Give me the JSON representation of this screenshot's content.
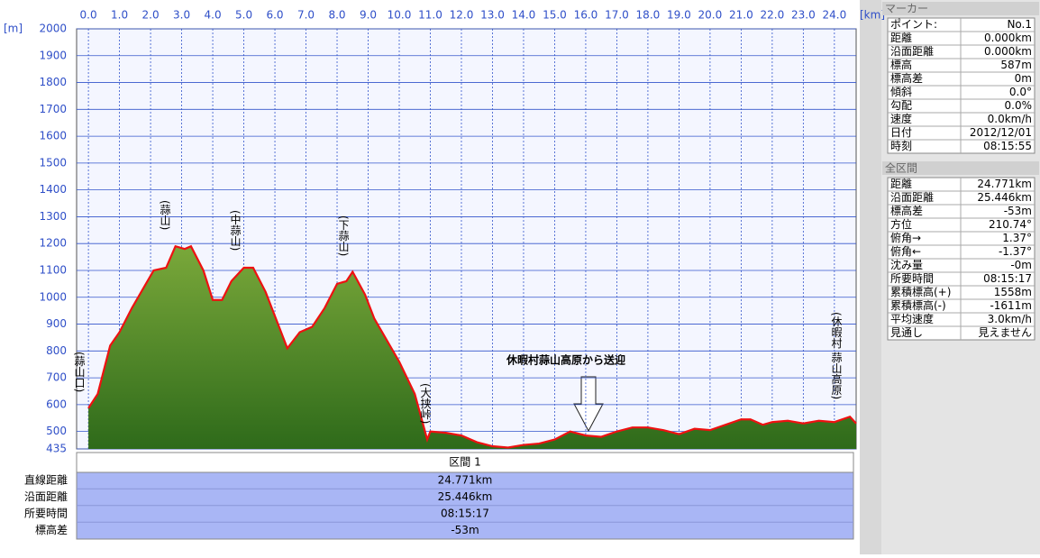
{
  "chart_data": {
    "type": "area",
    "ylabel": "[m]",
    "xlabel": "[km]",
    "xlim": [
      -0.38,
      24.7
    ],
    "ylim": [
      435,
      2000
    ],
    "xticks": [
      {
        "value": 0,
        "label": "0.0"
      },
      {
        "value": 1,
        "label": "1.0"
      },
      {
        "value": 2,
        "label": "2.0"
      },
      {
        "value": 3,
        "label": "3.0"
      },
      {
        "value": 4,
        "label": "4.0"
      },
      {
        "value": 5,
        "label": "5.0"
      },
      {
        "value": 6,
        "label": "6.0"
      },
      {
        "value": 7,
        "label": "7.0"
      },
      {
        "value": 8,
        "label": "8.0"
      },
      {
        "value": 9,
        "label": "9.0"
      },
      {
        "value": 10,
        "label": "10.0"
      },
      {
        "value": 11,
        "label": "11.0"
      },
      {
        "value": 12,
        "label": "12.0"
      },
      {
        "value": 13,
        "label": "13.0"
      },
      {
        "value": 14,
        "label": "14.0"
      },
      {
        "value": 15,
        "label": "15.0"
      },
      {
        "value": 16,
        "label": "16.0"
      },
      {
        "value": 17,
        "label": "17.0"
      },
      {
        "value": 18,
        "label": "18.0"
      },
      {
        "value": 19,
        "label": "19.0"
      },
      {
        "value": 20,
        "label": "20.0"
      },
      {
        "value": 21,
        "label": "21.0"
      },
      {
        "value": 22,
        "label": "22.0"
      },
      {
        "value": 23,
        "label": "23.0"
      },
      {
        "value": 24,
        "label": "24.0"
      }
    ],
    "yticks": [
      435,
      500,
      600,
      700,
      800,
      900,
      1000,
      1100,
      1200,
      1300,
      1400,
      1500,
      1600,
      1700,
      1800,
      1900,
      2000
    ],
    "grid": true,
    "line_color": "#ee1111",
    "fill_color": "#5a8a2a",
    "x": [
      0,
      0.3,
      0.7,
      1.0,
      1.4,
      1.8,
      2.1,
      2.5,
      2.8,
      3.1,
      3.3,
      3.7,
      4.0,
      4.3,
      4.6,
      5.0,
      5.3,
      5.7,
      6.1,
      6.4,
      6.8,
      7.2,
      7.6,
      8.0,
      8.3,
      8.5,
      8.9,
      9.2,
      9.5,
      10.0,
      10.5,
      10.9,
      11.0,
      11.5,
      12.0,
      12.5,
      13.0,
      13.5,
      14.0,
      14.5,
      15.0,
      15.5,
      16.0,
      16.5,
      17.0,
      17.5,
      18.0,
      18.5,
      19.0,
      19.5,
      20.0,
      20.5,
      21.0,
      21.3,
      21.7,
      22.0,
      22.5,
      23.0,
      23.5,
      24.0,
      24.5,
      24.7
    ],
    "values": [
      587,
      640,
      820,
      870,
      960,
      1040,
      1100,
      1110,
      1190,
      1180,
      1190,
      1100,
      990,
      990,
      1060,
      1110,
      1110,
      1020,
      900,
      810,
      870,
      890,
      960,
      1050,
      1060,
      1095,
      1010,
      920,
      860,
      760,
      640,
      470,
      500,
      495,
      485,
      460,
      445,
      440,
      450,
      455,
      470,
      500,
      485,
      480,
      500,
      515,
      515,
      505,
      490,
      510,
      505,
      525,
      545,
      545,
      525,
      535,
      540,
      530,
      540,
      535,
      555,
      530
    ],
    "annotations": [
      "(蒜山口)",
      "(蒜山)",
      "(中蒜山)",
      "(下蒜山)",
      "(大挟峠)",
      "(休暇村 蒜山高原)",
      "休暇村蒜山高原から送迎"
    ]
  },
  "segment": {
    "header": "区間 1",
    "rows": [
      [
        "直線距離",
        "24.771km"
      ],
      [
        "沿面距離",
        "25.446km"
      ],
      [
        "所要時間",
        "08:15:17"
      ],
      [
        "標高差",
        "-53m"
      ]
    ]
  },
  "marker": {
    "title": "マーカー",
    "rows": [
      [
        "ポイント:",
        "No.1"
      ],
      [
        "距離",
        "0.000km"
      ],
      [
        "沿面距離",
        "0.000km"
      ],
      [
        "標高",
        "587m"
      ],
      [
        "標高差",
        "0m"
      ],
      [
        "傾斜",
        "0.0°"
      ],
      [
        "勾配",
        "0.0%"
      ],
      [
        "速度",
        "0.0km/h"
      ],
      [
        "日付",
        "2012/12/01"
      ],
      [
        "時刻",
        "08:15:55"
      ]
    ]
  },
  "total": {
    "title": "全区間",
    "rows": [
      [
        "距離",
        "24.771km"
      ],
      [
        "沿面距離",
        "25.446km"
      ],
      [
        "標高差",
        "-53m"
      ],
      [
        "方位",
        "210.74°"
      ],
      [
        "俯角→",
        "1.37°"
      ],
      [
        "俯角←",
        "-1.37°"
      ],
      [
        "沈み量",
        "-0m"
      ],
      [
        "所要時間",
        "08:15:17"
      ],
      [
        "累積標高(+)",
        "1558m"
      ],
      [
        "累積標高(-)",
        "-1611m"
      ],
      [
        "平均速度",
        "3.0km/h"
      ],
      [
        "見通し",
        "見えません"
      ]
    ]
  }
}
